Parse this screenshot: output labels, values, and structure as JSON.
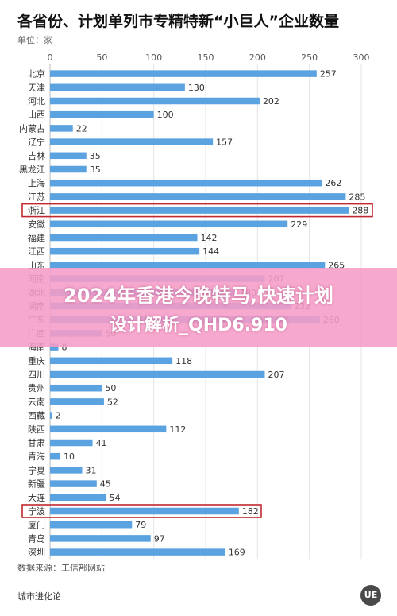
{
  "header": {
    "title": "各省份、计划单列市专精特新“小巨人”企业数量",
    "unit": "单位：家"
  },
  "chart_data": {
    "type": "bar",
    "orientation": "horizontal",
    "title": "各省份、计划单列市专精特新“小巨人”企业数量",
    "xlabel": "",
    "ylabel": "",
    "xlim": [
      0,
      300
    ],
    "ticks": [
      0,
      50,
      100,
      150,
      200,
      250,
      300
    ],
    "grid": true,
    "categories": [
      "北京",
      "天津",
      "河北",
      "山西",
      "内蒙古",
      "辽宁",
      "吉林",
      "黑龙江",
      "上海",
      "江苏",
      "浙江",
      "安徽",
      "福建",
      "江西",
      "山东",
      "河南",
      "湖北",
      "湖南",
      "广东",
      "广西",
      "海南",
      "重庆",
      "四川",
      "贵州",
      "云南",
      "西藏",
      "陕西",
      "甘肃",
      "青海",
      "宁夏",
      "新疆",
      "大连",
      "宁波",
      "厦门",
      "青岛",
      "深圳"
    ],
    "values": [
      257,
      130,
      202,
      100,
      22,
      157,
      35,
      35,
      262,
      285,
      288,
      229,
      142,
      144,
      265,
      207,
      180,
      232,
      260,
      50,
      8,
      118,
      207,
      50,
      52,
      2,
      112,
      41,
      10,
      31,
      45,
      54,
      182,
      79,
      97,
      169
    ],
    "highlighted": [
      "浙江",
      "宁波"
    ],
    "bar_color": "#5aa2e0",
    "highlight_color": "#c0292f"
  },
  "footer": {
    "source": "数据来源：工信部网站",
    "brand": "城市进化论",
    "logo_text": "UE"
  },
  "overlay": {
    "line1": "2024年香港今晚特马,快速计划",
    "line2": "设计解析_QHD6.910"
  }
}
